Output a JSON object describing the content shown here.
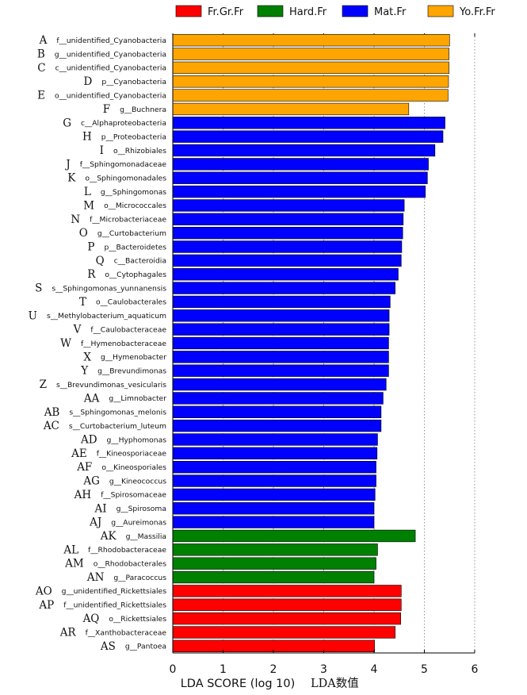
{
  "chart_data": {
    "type": "bar",
    "orientation": "horizontal",
    "xlabel": "LDA SCORE (log 10)",
    "xlabel_suffix": "LDA数值",
    "xlim": [
      0,
      6
    ],
    "xticks": [
      "0",
      "1",
      "2",
      "3",
      "4",
      "5",
      "6"
    ],
    "grid": "vertical dotted",
    "legend_position": "top",
    "groups": [
      {
        "name": "Fr.Gr.Fr",
        "color": "#ff0000"
      },
      {
        "name": "Hard.Fr",
        "color": "#008000"
      },
      {
        "name": "Mat.Fr",
        "color": "#0000ff"
      },
      {
        "name": "Yo.Fr.Fr",
        "color": "#ffa500"
      }
    ],
    "bars": [
      {
        "letter": "A",
        "taxon": "f__unidentified_Cyanobacteria",
        "value": 5.5,
        "group": "Yo.Fr.Fr"
      },
      {
        "letter": "B",
        "taxon": "g__unidentified_Cyanobacteria",
        "value": 5.49,
        "group": "Yo.Fr.Fr"
      },
      {
        "letter": "C",
        "taxon": "c__unidentified_Cyanobacteria",
        "value": 5.49,
        "group": "Yo.Fr.Fr"
      },
      {
        "letter": "D",
        "taxon": "p__Cyanobacteria",
        "value": 5.48,
        "group": "Yo.Fr.Fr"
      },
      {
        "letter": "E",
        "taxon": "o__unidentified_Cyanobacteria",
        "value": 5.47,
        "group": "Yo.Fr.Fr"
      },
      {
        "letter": "F",
        "taxon": "g__Buchnera",
        "value": 4.69,
        "group": "Yo.Fr.Fr"
      },
      {
        "letter": "G",
        "taxon": "c__Alphaproteobacteria",
        "value": 5.41,
        "group": "Mat.Fr"
      },
      {
        "letter": "H",
        "taxon": "p__Proteobacteria",
        "value": 5.37,
        "group": "Mat.Fr"
      },
      {
        "letter": "I",
        "taxon": "o__Rhizobiales",
        "value": 5.21,
        "group": "Mat.Fr"
      },
      {
        "letter": "J",
        "taxon": "f__Sphingomonadaceae",
        "value": 5.08,
        "group": "Mat.Fr"
      },
      {
        "letter": "K",
        "taxon": "o__Sphingomonadales",
        "value": 5.06,
        "group": "Mat.Fr"
      },
      {
        "letter": "L",
        "taxon": "g__Sphingomonas",
        "value": 5.02,
        "group": "Mat.Fr"
      },
      {
        "letter": "M",
        "taxon": "o__Micrococcales",
        "value": 4.6,
        "group": "Mat.Fr"
      },
      {
        "letter": "N",
        "taxon": "f__Microbacteriaceae",
        "value": 4.58,
        "group": "Mat.Fr"
      },
      {
        "letter": "O",
        "taxon": "g__Curtobacterium",
        "value": 4.57,
        "group": "Mat.Fr"
      },
      {
        "letter": "P",
        "taxon": "p__Bacteroidetes",
        "value": 4.55,
        "group": "Mat.Fr"
      },
      {
        "letter": "Q",
        "taxon": "c__Bacteroidia",
        "value": 4.54,
        "group": "Mat.Fr"
      },
      {
        "letter": "R",
        "taxon": "o__Cytophagales",
        "value": 4.48,
        "group": "Mat.Fr"
      },
      {
        "letter": "S",
        "taxon": "s__Sphingomonas_yunnanensis",
        "value": 4.42,
        "group": "Mat.Fr"
      },
      {
        "letter": "T",
        "taxon": "o__Caulobacterales",
        "value": 4.32,
        "group": "Mat.Fr"
      },
      {
        "letter": "U",
        "taxon": "s__Methylobacterium_aquaticum",
        "value": 4.3,
        "group": "Mat.Fr"
      },
      {
        "letter": "V",
        "taxon": "f__Caulobacteraceae",
        "value": 4.3,
        "group": "Mat.Fr"
      },
      {
        "letter": "W",
        "taxon": "f__Hymenobacteraceae",
        "value": 4.29,
        "group": "Mat.Fr"
      },
      {
        "letter": "X",
        "taxon": "g__Hymenobacter",
        "value": 4.29,
        "group": "Mat.Fr"
      },
      {
        "letter": "Y",
        "taxon": "g__Brevundimonas",
        "value": 4.29,
        "group": "Mat.Fr"
      },
      {
        "letter": "Z",
        "taxon": "s__Brevundimonas_vesicularis",
        "value": 4.24,
        "group": "Mat.Fr"
      },
      {
        "letter": "AA",
        "taxon": "g__Limnobacter",
        "value": 4.18,
        "group": "Mat.Fr"
      },
      {
        "letter": "AB",
        "taxon": "s__Sphingomonas_melonis",
        "value": 4.14,
        "group": "Mat.Fr"
      },
      {
        "letter": "AC",
        "taxon": "s__Curtobacterium_luteum",
        "value": 4.14,
        "group": "Mat.Fr"
      },
      {
        "letter": "AD",
        "taxon": "g__Hyphomonas",
        "value": 4.07,
        "group": "Mat.Fr"
      },
      {
        "letter": "AE",
        "taxon": "f__Kineosporiaceae",
        "value": 4.06,
        "group": "Mat.Fr"
      },
      {
        "letter": "AF",
        "taxon": "o__Kineosporiales",
        "value": 4.04,
        "group": "Mat.Fr"
      },
      {
        "letter": "AG",
        "taxon": "g__Kineococcus",
        "value": 4.04,
        "group": "Mat.Fr"
      },
      {
        "letter": "AH",
        "taxon": "f__Spirosomaceae",
        "value": 4.02,
        "group": "Mat.Fr"
      },
      {
        "letter": "AI",
        "taxon": "g__Spirosoma",
        "value": 4.0,
        "group": "Mat.Fr"
      },
      {
        "letter": "AJ",
        "taxon": "g__Aureimonas",
        "value": 4.0,
        "group": "Mat.Fr"
      },
      {
        "letter": "AK",
        "taxon": "g__Massilia",
        "value": 4.82,
        "group": "Hard.Fr"
      },
      {
        "letter": "AL",
        "taxon": "f__Rhodobacteraceae",
        "value": 4.07,
        "group": "Hard.Fr"
      },
      {
        "letter": "AM",
        "taxon": "o__Rhodobacterales",
        "value": 4.04,
        "group": "Hard.Fr"
      },
      {
        "letter": "AN",
        "taxon": "g__Paracoccus",
        "value": 4.0,
        "group": "Hard.Fr"
      },
      {
        "letter": "AO",
        "taxon": "g__unidentified_Rickettsiales",
        "value": 4.54,
        "group": "Fr.Gr.Fr"
      },
      {
        "letter": "AP",
        "taxon": "f__unidentified_Rickettsiales",
        "value": 4.54,
        "group": "Fr.Gr.Fr"
      },
      {
        "letter": "AQ",
        "taxon": "o__Rickettsiales",
        "value": 4.53,
        "group": "Fr.Gr.Fr"
      },
      {
        "letter": "AR",
        "taxon": "f__Xanthobacteraceae",
        "value": 4.42,
        "group": "Fr.Gr.Fr"
      },
      {
        "letter": "AS",
        "taxon": "g__Pantoea",
        "value": 4.01,
        "group": "Fr.Gr.Fr"
      }
    ]
  }
}
